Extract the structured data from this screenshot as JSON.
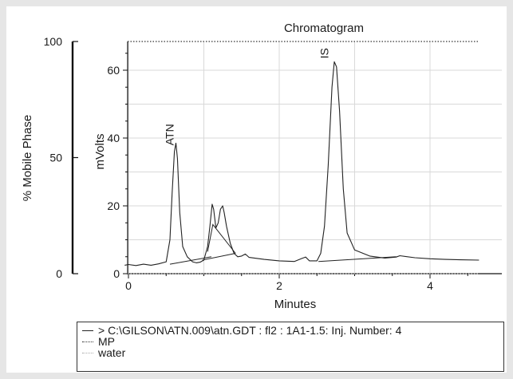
{
  "chart_data": {
    "type": "line",
    "title": "Chromatogram",
    "xlabel": "Minutes",
    "ylabel": "mVolts",
    "y2label": "% Mobile Phase",
    "xlim": [
      0,
      5
    ],
    "ylim": [
      0,
      70
    ],
    "y2lim": [
      0,
      100
    ],
    "x_ticks": [
      "0",
      "2",
      "4"
    ],
    "y_ticks": [
      "0",
      "20",
      "40",
      "60"
    ],
    "y2_ticks": [
      "0",
      "50",
      "100"
    ],
    "series": [
      {
        "name": "> C:\\GILSON\\ATN.009\\atn.GDT : fl2 : 1A1-1.5: Inj. Number: 4",
        "style": "solid",
        "color": "#222222",
        "x": [
          -0.05,
          0.0,
          0.1,
          0.2,
          0.3,
          0.4,
          0.5,
          0.55,
          0.58,
          0.61,
          0.63,
          0.65,
          0.68,
          0.72,
          0.78,
          0.85,
          0.9,
          0.95,
          1.0,
          1.05,
          1.08,
          1.11,
          1.13,
          1.16,
          1.19,
          1.22,
          1.25,
          1.27,
          1.3,
          1.35,
          1.4,
          1.45,
          1.5,
          1.55,
          1.6,
          1.8,
          2.0,
          2.2,
          2.3,
          2.35,
          2.4,
          2.5,
          2.55,
          2.6,
          2.65,
          2.7,
          2.73,
          2.76,
          2.8,
          2.85,
          2.9,
          3.0,
          3.2,
          3.4,
          3.55,
          3.6,
          3.8,
          4.0,
          4.2,
          4.4,
          4.65
        ],
        "y": [
          2.5,
          2.7,
          2.4,
          2.8,
          2.5,
          2.9,
          3.5,
          10,
          24,
          36,
          38.5,
          34,
          18,
          8,
          5,
          3.5,
          3.2,
          3.4,
          4,
          8,
          14,
          20.5,
          19,
          13.5,
          15,
          19,
          20,
          18,
          14,
          9,
          6,
          5,
          5.2,
          5.8,
          4.8,
          4.2,
          3.8,
          3.6,
          4.5,
          4.9,
          3.8,
          3.8,
          6,
          14,
          32,
          55,
          62.5,
          61,
          48,
          25,
          12,
          7,
          5.2,
          4.6,
          4.9,
          5.3,
          4.7,
          4.4,
          4.2,
          4.1,
          4.0
        ]
      }
    ],
    "baseline_segments": [
      {
        "x": [
          0.55,
          1.1
        ],
        "y": [
          2.8,
          5.0
        ]
      },
      {
        "x": [
          0.98,
          1.42
        ],
        "y": [
          4.0,
          6.0
        ]
      },
      {
        "x": [
          1.05,
          1.12,
          1.42
        ],
        "y": [
          6.5,
          14.5,
          6.0
        ]
      },
      {
        "x": [
          2.52,
          3.55
        ],
        "y": [
          3.6,
          5.0
        ]
      }
    ],
    "mobile_phase_lines": [
      {
        "name": "MP",
        "style": "dotted",
        "color": "#333333",
        "value": 100
      },
      {
        "name": "water",
        "style": "dotted",
        "color": "#aaaaaa",
        "value": 0
      }
    ],
    "annotations": [
      {
        "text": "ATN",
        "x": 0.6,
        "y": 41
      },
      {
        "text": "IS",
        "x": 2.65,
        "y": 65
      }
    ],
    "grid": true,
    "legend_position": "bottom"
  },
  "legend": {
    "entries": [
      {
        "label": "> C:\\GILSON\\ATN.009\\atn.GDT : fl2 : 1A1-1.5: Inj. Number: 4",
        "style": "solid"
      },
      {
        "label": "MP",
        "style": "dotted"
      },
      {
        "label": "water",
        "style": "dotted-light"
      }
    ]
  }
}
